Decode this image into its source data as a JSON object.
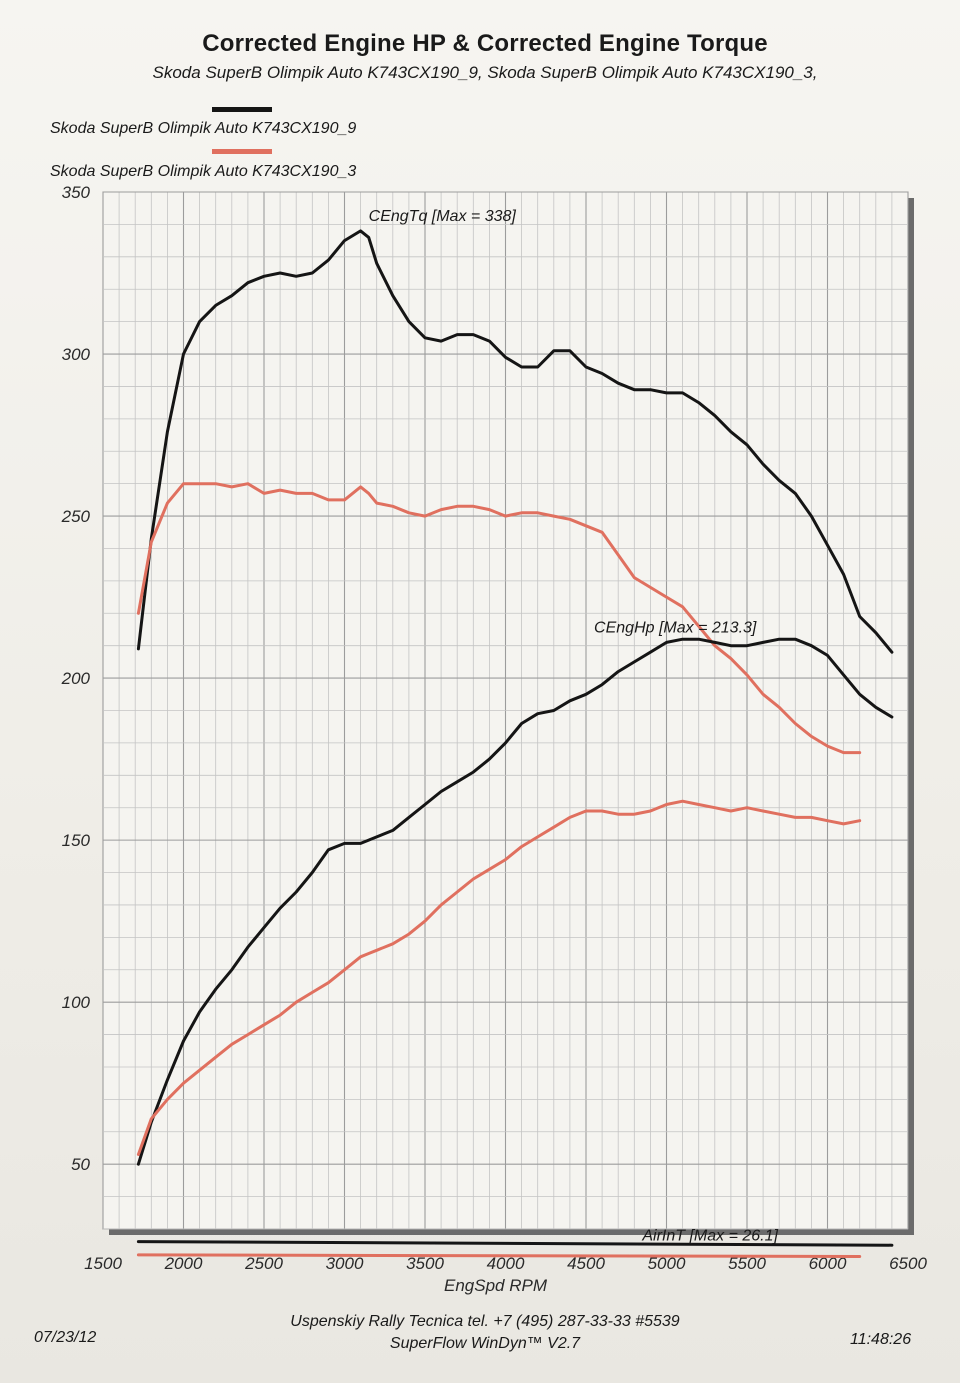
{
  "header": {
    "title": "Corrected Engine HP & Corrected Engine Torque",
    "subtitle": "Skoda SuperB Olimpik Auto K743CX190_9, Skoda SuperB Olimpik Auto K743CX190_3,"
  },
  "legend": [
    {
      "label": "Skoda SuperB Olimpik Auto K743CX190_9",
      "color": "#151515"
    },
    {
      "label": "Skoda SuperB Olimpik Auto K743CX190_3",
      "color": "#e0705f"
    }
  ],
  "footer": {
    "date": "07/23/12",
    "company": "Uspenskiy Rally Tecnica   tel. +7 (495) 287-33-33 #5539",
    "software": "SuperFlow WinDyn™ V2.7",
    "time": "11:48:26"
  },
  "chart_data": {
    "type": "line",
    "xlabel": "EngSpd  RPM",
    "ylabel": "",
    "xlim": [
      1500,
      6500
    ],
    "ylim": [
      30,
      350
    ],
    "x_ticks": [
      1500,
      2000,
      2500,
      3000,
      3500,
      4000,
      4500,
      5000,
      5500,
      6000,
      6500
    ],
    "y_ticks": [
      50,
      100,
      150,
      200,
      250,
      300,
      350
    ],
    "grid": true,
    "legend_position": "top-left",
    "annotations": [
      {
        "text": "CEngTq [Max = 338]",
        "x": 3150,
        "y": 341
      },
      {
        "text": "CEngHp [Max = 213.3]",
        "x": 4550,
        "y": 214
      },
      {
        "text": "AirInT [Max = 26.1]",
        "x": 4850,
        "y": 26.5
      }
    ],
    "series": [
      {
        "name": "Skoda SuperB Olimpik Auto K743CX190_9",
        "quantity": "CEngTq",
        "color": "#151515",
        "x": [
          1720,
          1800,
          1900,
          2000,
          2100,
          2200,
          2300,
          2400,
          2500,
          2600,
          2700,
          2800,
          2900,
          3000,
          3100,
          3150,
          3200,
          3300,
          3400,
          3500,
          3600,
          3700,
          3800,
          3900,
          4000,
          4100,
          4200,
          4300,
          4400,
          4500,
          4600,
          4700,
          4800,
          4900,
          5000,
          5100,
          5200,
          5300,
          5400,
          5500,
          5600,
          5700,
          5800,
          5900,
          6000,
          6100,
          6200,
          6300,
          6400
        ],
        "y": [
          209,
          243,
          276,
          300,
          310,
          315,
          318,
          322,
          324,
          325,
          324,
          325,
          329,
          335,
          338,
          336,
          328,
          318,
          310,
          305,
          304,
          306,
          306,
          304,
          299,
          296,
          296,
          301,
          301,
          296,
          294,
          291,
          289,
          289,
          288,
          288,
          285,
          281,
          276,
          272,
          266,
          261,
          257,
          250,
          241,
          232,
          219,
          214,
          208
        ]
      },
      {
        "name": "Skoda SuperB Olimpik Auto K743CX190_3",
        "quantity": "CEngTq",
        "color": "#e0705f",
        "x": [
          1720,
          1800,
          1900,
          2000,
          2100,
          2200,
          2300,
          2400,
          2500,
          2600,
          2700,
          2800,
          2900,
          3000,
          3100,
          3150,
          3200,
          3300,
          3400,
          3500,
          3600,
          3700,
          3800,
          3900,
          4000,
          4100,
          4200,
          4300,
          4400,
          4500,
          4600,
          4700,
          4800,
          4900,
          5000,
          5100,
          5200,
          5300,
          5400,
          5500,
          5600,
          5700,
          5800,
          5900,
          6000,
          6100,
          6200
        ],
        "y": [
          220,
          242,
          254,
          260,
          260,
          260,
          259,
          260,
          257,
          258,
          257,
          257,
          255,
          255,
          259,
          257,
          254,
          253,
          251,
          250,
          252,
          253,
          253,
          252,
          250,
          251,
          251,
          250,
          249,
          247,
          245,
          238,
          231,
          228,
          225,
          222,
          216,
          210,
          206,
          201,
          195,
          191,
          186,
          182,
          179,
          177,
          177
        ]
      },
      {
        "name": "Skoda SuperB Olimpik Auto K743CX190_9",
        "quantity": "CEngHp",
        "color": "#151515",
        "x": [
          1720,
          1800,
          1900,
          2000,
          2100,
          2200,
          2300,
          2400,
          2500,
          2600,
          2700,
          2800,
          2900,
          3000,
          3100,
          3150,
          3200,
          3300,
          3400,
          3500,
          3600,
          3700,
          3800,
          3900,
          4000,
          4100,
          4200,
          4300,
          4400,
          4500,
          4600,
          4700,
          4800,
          4900,
          5000,
          5100,
          5200,
          5300,
          5400,
          5500,
          5600,
          5700,
          5800,
          5900,
          6000,
          6100,
          6200,
          6300,
          6400
        ],
        "y": [
          50,
          63,
          76,
          88,
          97,
          104,
          110,
          117,
          123,
          129,
          134,
          140,
          147,
          149,
          149,
          150,
          151,
          153,
          157,
          161,
          165,
          168,
          171,
          175,
          180,
          186,
          189,
          190,
          193,
          195,
          198,
          202,
          205,
          208,
          211,
          212,
          212,
          211,
          210,
          210,
          211,
          212,
          212,
          210,
          207,
          201,
          195,
          191,
          188
        ]
      },
      {
        "name": "Skoda SuperB Olimpik Auto K743CX190_3",
        "quantity": "CEngHp",
        "color": "#e0705f",
        "x": [
          1720,
          1800,
          1900,
          2000,
          2100,
          2200,
          2300,
          2400,
          2500,
          2600,
          2700,
          2800,
          2900,
          3000,
          3100,
          3150,
          3200,
          3300,
          3400,
          3500,
          3600,
          3700,
          3800,
          3900,
          4000,
          4100,
          4200,
          4300,
          4400,
          4500,
          4600,
          4700,
          4800,
          4900,
          5000,
          5100,
          5200,
          5300,
          5400,
          5500,
          5600,
          5700,
          5800,
          5900,
          6000,
          6100,
          6200
        ],
        "y": [
          53,
          64,
          70,
          75,
          79,
          83,
          87,
          90,
          93,
          96,
          100,
          103,
          106,
          110,
          114,
          115,
          116,
          118,
          121,
          125,
          130,
          134,
          138,
          141,
          144,
          148,
          151,
          154,
          157,
          159,
          159,
          158,
          158,
          159,
          161,
          162,
          161,
          160,
          159,
          160,
          159,
          158,
          157,
          157,
          156,
          155,
          156
        ]
      },
      {
        "name": "Skoda SuperB Olimpik Auto K743CX190_9",
        "quantity": "AirInT",
        "color": "#151515",
        "x": [
          1720,
          6400
        ],
        "y": [
          26.1,
          25.0
        ]
      },
      {
        "name": "Skoda SuperB Olimpik Auto K743CX190_3",
        "quantity": "AirInT",
        "color": "#e0705f",
        "x": [
          1720,
          6200
        ],
        "y": [
          22.0,
          21.5
        ]
      }
    ]
  }
}
